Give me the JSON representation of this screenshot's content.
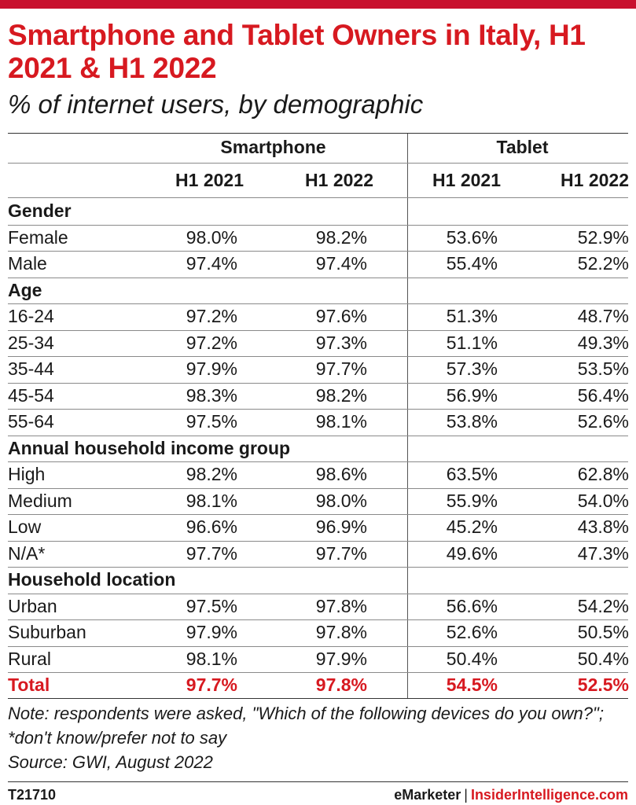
{
  "header": {
    "title": "Smartphone and Tablet Owners in Italy, H1 2021 & H1 2022",
    "subtitle": "% of internet users, by demographic"
  },
  "chart_data": {
    "type": "table",
    "groups": [
      "Smartphone",
      "Tablet"
    ],
    "columns": [
      "H1 2021",
      "H1 2022",
      "H1 2021",
      "H1 2022"
    ],
    "rows": [
      {
        "label": "Gender",
        "section": true,
        "values": []
      },
      {
        "label": "Female",
        "values": [
          "98.0%",
          "98.2%",
          "53.6%",
          "52.9%"
        ]
      },
      {
        "label": "Male",
        "values": [
          "97.4%",
          "97.4%",
          "55.4%",
          "52.2%"
        ]
      },
      {
        "label": "Age",
        "section": true,
        "values": []
      },
      {
        "label": "16-24",
        "values": [
          "97.2%",
          "97.6%",
          "51.3%",
          "48.7%"
        ]
      },
      {
        "label": "25-34",
        "values": [
          "97.2%",
          "97.3%",
          "51.1%",
          "49.3%"
        ]
      },
      {
        "label": "35-44",
        "values": [
          "97.9%",
          "97.7%",
          "57.3%",
          "53.5%"
        ]
      },
      {
        "label": "45-54",
        "values": [
          "98.3%",
          "98.2%",
          "56.9%",
          "56.4%"
        ]
      },
      {
        "label": "55-64",
        "values": [
          "97.5%",
          "98.1%",
          "53.8%",
          "52.6%"
        ]
      },
      {
        "label": "Annual household income group",
        "section": true,
        "values": []
      },
      {
        "label": "High",
        "values": [
          "98.2%",
          "98.6%",
          "63.5%",
          "62.8%"
        ]
      },
      {
        "label": "Medium",
        "values": [
          "98.1%",
          "98.0%",
          "55.9%",
          "54.0%"
        ]
      },
      {
        "label": "Low",
        "values": [
          "96.6%",
          "96.9%",
          "45.2%",
          "43.8%"
        ]
      },
      {
        "label": "N/A*",
        "values": [
          "97.7%",
          "97.7%",
          "49.6%",
          "47.3%"
        ]
      },
      {
        "label": "Household location",
        "section": true,
        "values": []
      },
      {
        "label": "Urban",
        "values": [
          "97.5%",
          "97.8%",
          "56.6%",
          "54.2%"
        ]
      },
      {
        "label": "Suburban",
        "values": [
          "97.9%",
          "97.8%",
          "52.6%",
          "50.5%"
        ]
      },
      {
        "label": "Rural",
        "values": [
          "98.1%",
          "97.9%",
          "50.4%",
          "50.4%"
        ]
      },
      {
        "label": "Total",
        "total": true,
        "values": [
          "97.7%",
          "97.8%",
          "54.5%",
          "52.5%"
        ]
      }
    ]
  },
  "notes": {
    "note": "Note: respondents were asked, \"Which of the following devices do you own?\"; *don't know/prefer not to say",
    "source": "Source: GWI, August 2022"
  },
  "footer": {
    "code": "T21710",
    "brand_left": "eMarketer",
    "divider": "|",
    "brand_right": "InsiderIntelligence.com"
  },
  "colors": {
    "accent": "#d71920",
    "top_bar": "#c8102e",
    "text": "#1a1a1a"
  }
}
